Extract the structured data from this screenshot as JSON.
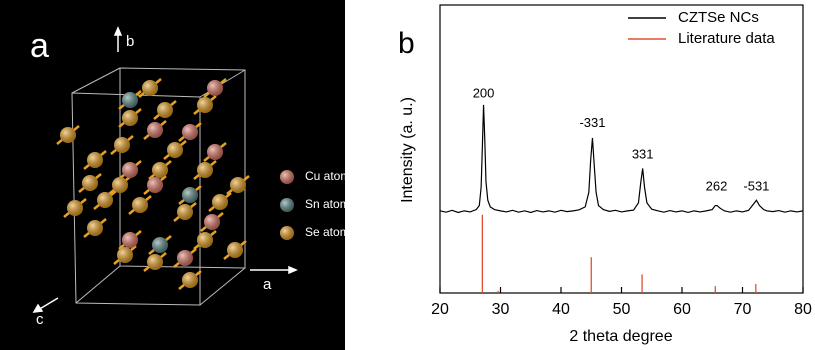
{
  "structure": {
    "panel_label": "a",
    "axis_labels": {
      "b": "b",
      "a": "a",
      "c": "c"
    },
    "legend": [
      {
        "name": "Cu atom",
        "color": "#e07868"
      },
      {
        "name": "Sn atom",
        "color": "#5e8c8a"
      },
      {
        "name": "Se atom",
        "color": "#e8a020"
      }
    ]
  },
  "chart_data": {
    "type": "line",
    "panel_label": "b",
    "xlabel": "2 theta degree",
    "ylabel": "Intensity (a. u.)",
    "xlim": [
      20,
      80
    ],
    "xticks": [
      20,
      30,
      40,
      50,
      60,
      70,
      80
    ],
    "ylim": [
      0,
      100
    ],
    "legend": "upper right",
    "series": [
      {
        "name": "CZTSe NCs",
        "color": "#000000",
        "style": "line",
        "x": [
          20,
          21,
          22,
          23,
          24,
          25,
          26,
          26.5,
          26.8,
          27.0,
          27.2,
          27.4,
          27.6,
          27.9,
          28.3,
          29,
          30,
          31,
          32,
          33,
          34,
          35,
          36,
          37,
          38,
          39,
          40,
          41,
          42,
          43,
          44,
          44.6,
          44.9,
          45.2,
          45.5,
          45.8,
          46.2,
          47,
          48,
          49,
          50,
          51,
          52,
          52.8,
          53.2,
          53.5,
          53.8,
          54.2,
          55,
          56,
          57,
          58,
          59,
          60,
          61,
          62,
          63,
          64,
          65,
          65.5,
          65.8,
          66.3,
          67,
          68,
          69,
          70,
          71,
          71.8,
          72.3,
          72.8,
          73.5,
          74,
          75,
          76,
          77,
          78,
          79,
          80
        ],
        "values": [
          31,
          30.5,
          31.2,
          30.4,
          31,
          30.6,
          31.5,
          33,
          40,
          55,
          71,
          58,
          42,
          35,
          32.5,
          31.5,
          31,
          30.6,
          31.2,
          30.5,
          31,
          30.4,
          31.1,
          30.6,
          31,
          30.5,
          31.2,
          30.7,
          31,
          31.4,
          32.5,
          38,
          50,
          58.5,
          48,
          38,
          33,
          31.5,
          30.8,
          31.2,
          30.6,
          31,
          31.3,
          34,
          42,
          47,
          40,
          34,
          31.6,
          31,
          30.5,
          31.1,
          30.6,
          31,
          30.4,
          31,
          30.6,
          31,
          31.5,
          33,
          33,
          32,
          31,
          30.5,
          31,
          30.6,
          31.2,
          33.5,
          35,
          33,
          31.5,
          31,
          30.7,
          31.1,
          30.5,
          31,
          30.6,
          31
        ]
      },
      {
        "name": "Literature data",
        "color": "#e05030",
        "style": "stem",
        "x": [
          27.0,
          29.6,
          45.0,
          53.4,
          65.5,
          72.2
        ],
        "values": [
          29.5,
          0.8,
          13.5,
          7,
          2.6,
          3.4
        ]
      }
    ],
    "annotations": [
      {
        "text": "200",
        "x": 27.2,
        "y": 75
      },
      {
        "text": "-331",
        "x": 45.2,
        "y": 64
      },
      {
        "text": "331",
        "x": 53.5,
        "y": 52
      },
      {
        "text": "262",
        "x": 65.7,
        "y": 40
      },
      {
        "text": "-531",
        "x": 72.3,
        "y": 40
      }
    ]
  }
}
